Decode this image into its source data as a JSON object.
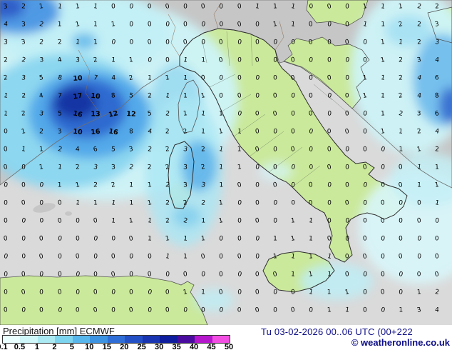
{
  "legend": {
    "title_product": "Precipitation",
    "title_unit": "[mm]",
    "title_model": "ECMWF",
    "scale_ticks": [
      "0.1",
      "0.5",
      "1",
      "2",
      "5",
      "10",
      "15",
      "20",
      "25",
      "30",
      "35",
      "40",
      "45",
      "50"
    ],
    "scale_colors": [
      "#eaffff",
      "#cff6f8",
      "#abeaf2",
      "#7dd4ee",
      "#57b6ec",
      "#3b93e2",
      "#2f6ed6",
      "#2450c6",
      "#1935b2",
      "#0e1c9e",
      "#4a0c9e",
      "#b517cc",
      "#f24fe2"
    ]
  },
  "footer": {
    "timestamp": "Tu 03-02-2026 00..06 UTC (00+222",
    "copyright": "© weatheronline.co.uk"
  },
  "map": {
    "colors": {
      "sea": "#dadada",
      "land": "#c6c6c6",
      "land_green": "#cbe99b"
    },
    "value_rows": [
      [
        3,
        2,
        1,
        1,
        1,
        1,
        0,
        0,
        0,
        0,
        0,
        0,
        0,
        0,
        1,
        1,
        1,
        0,
        0,
        0,
        1,
        1,
        1,
        2,
        2
      ],
      [
        4,
        3,
        2,
        1,
        1,
        1,
        1,
        0,
        0,
        0,
        0,
        0,
        0,
        0,
        0,
        1,
        1,
        0,
        0,
        0,
        1,
        1,
        2,
        2,
        3
      ],
      [
        3,
        3,
        2,
        2,
        1,
        1,
        0,
        0,
        0,
        0,
        0,
        0,
        0,
        0,
        0,
        0,
        0,
        0,
        0,
        0,
        0,
        1,
        1,
        2,
        3
      ],
      [
        2,
        2,
        3,
        4,
        3,
        2,
        1,
        1,
        0,
        0,
        1,
        1,
        0,
        0,
        0,
        0,
        0,
        0,
        0,
        0,
        0,
        1,
        2,
        3,
        4
      ],
      [
        2,
        3,
        5,
        8,
        10,
        7,
        4,
        2,
        1,
        1,
        1,
        0,
        0,
        0,
        0,
        0,
        0,
        0,
        0,
        0,
        1,
        1,
        2,
        4,
        6
      ],
      [
        1,
        2,
        4,
        7,
        17,
        10,
        8,
        5,
        2,
        1,
        1,
        1,
        0,
        0,
        0,
        0,
        0,
        0,
        0,
        0,
        1,
        1,
        2,
        4,
        8
      ],
      [
        1,
        2,
        3,
        5,
        16,
        13,
        12,
        12,
        5,
        2,
        1,
        1,
        1,
        0,
        0,
        0,
        0,
        0,
        0,
        0,
        0,
        1,
        2,
        3,
        6
      ],
      [
        0,
        1,
        2,
        3,
        10,
        16,
        16,
        8,
        4,
        2,
        2,
        1,
        1,
        1,
        0,
        0,
        0,
        0,
        0,
        0,
        0,
        1,
        1,
        2,
        4
      ],
      [
        0,
        1,
        1,
        2,
        4,
        6,
        5,
        3,
        2,
        2,
        3,
        2,
        1,
        1,
        0,
        0,
        0,
        0,
        0,
        0,
        0,
        0,
        1,
        1,
        2
      ],
      [
        0,
        0,
        1,
        1,
        2,
        3,
        3,
        2,
        2,
        2,
        3,
        2,
        1,
        1,
        0,
        0,
        0,
        0,
        0,
        0,
        0,
        0,
        0,
        1,
        1
      ],
      [
        0,
        0,
        0,
        1,
        1,
        2,
        2,
        1,
        1,
        2,
        3,
        3,
        1,
        0,
        0,
        0,
        0,
        0,
        0,
        0,
        0,
        0,
        0,
        1,
        1
      ],
      [
        0,
        0,
        0,
        0,
        1,
        1,
        1,
        1,
        1,
        2,
        2,
        2,
        1,
        0,
        0,
        0,
        0,
        0,
        0,
        0,
        0,
        0,
        0,
        0,
        1
      ],
      [
        0,
        0,
        0,
        0,
        0,
        0,
        1,
        1,
        1,
        2,
        2,
        1,
        1,
        0,
        0,
        0,
        1,
        1,
        0,
        0,
        0,
        0,
        0,
        0,
        0
      ],
      [
        0,
        0,
        0,
        0,
        0,
        0,
        0,
        0,
        1,
        1,
        1,
        1,
        0,
        0,
        0,
        1,
        1,
        1,
        0,
        0,
        0,
        0,
        0,
        0,
        0
      ],
      [
        0,
        0,
        0,
        0,
        0,
        0,
        0,
        0,
        0,
        1,
        1,
        0,
        0,
        0,
        0,
        1,
        1,
        1,
        1,
        0,
        0,
        0,
        0,
        0,
        0
      ],
      [
        0,
        0,
        0,
        0,
        0,
        0,
        0,
        0,
        0,
        0,
        0,
        0,
        0,
        0,
        0,
        0,
        1,
        1,
        1,
        0,
        0,
        0,
        0,
        0,
        0
      ],
      [
        0,
        0,
        0,
        0,
        0,
        0,
        0,
        0,
        0,
        0,
        1,
        1,
        0,
        0,
        0,
        0,
        0,
        1,
        1,
        1,
        0,
        0,
        0,
        1,
        2
      ],
      [
        0,
        0,
        0,
        0,
        0,
        0,
        0,
        0,
        0,
        0,
        0,
        0,
        0,
        0,
        0,
        0,
        0,
        0,
        1,
        1,
        0,
        0,
        1,
        3,
        4
      ]
    ]
  }
}
